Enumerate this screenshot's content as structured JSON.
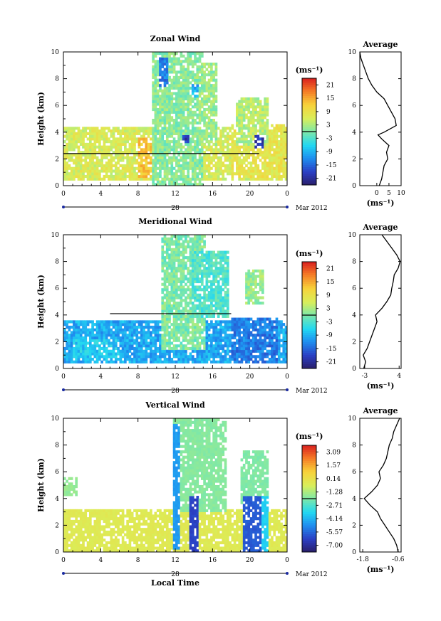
{
  "chart_data": [
    {
      "type": "heatmap",
      "title": "Zonal Wind",
      "xlabel": "",
      "ylabel": "Height (km)",
      "xlim": [
        0,
        24
      ],
      "ylim": [
        0,
        10
      ],
      "x_ticks": [
        "0",
        "4",
        "8",
        "12",
        "16",
        "20",
        "0"
      ],
      "y_ticks": [
        "0",
        "2",
        "4",
        "6",
        "8",
        "10"
      ],
      "date_day": "28",
      "date_month": "Mar 2012",
      "colorbar": {
        "unit": "(ms⁻¹)",
        "labels": [
          "21",
          "15",
          "9",
          "3",
          "-3",
          "-9",
          "-15",
          "-21"
        ],
        "range": [
          -24,
          24
        ]
      },
      "field_scale": 18,
      "regions": [
        {
          "x": [
            0,
            24
          ],
          "y": [
            0.5,
            4.3
          ],
          "v": 0.35
        },
        {
          "x": [
            8,
            14
          ],
          "y": [
            0.7,
            3.6
          ],
          "v": 0.7
        },
        {
          "x": [
            9.5,
            15
          ],
          "y": [
            0,
            10
          ],
          "v": 0.05
        },
        {
          "x": [
            14.5,
            16.5
          ],
          "y": [
            3,
            9.2
          ],
          "v": 0.1
        },
        {
          "x": [
            18,
            24
          ],
          "y": [
            0.6,
            4.5
          ],
          "v": 0.45
        },
        {
          "x": [
            18.5,
            22
          ],
          "y": [
            3,
            6.5
          ],
          "v": 0.2
        }
      ],
      "dark_blobs": [
        {
          "x": [
            10.3,
            11.3
          ],
          "y": [
            7.4,
            9.6
          ],
          "v": -0.75
        },
        {
          "x": [
            12.8,
            13.6
          ],
          "y": [
            3.2,
            3.8
          ],
          "v": -1.05
        },
        {
          "x": [
            20.6,
            21.5
          ],
          "y": [
            2.9,
            3.9
          ],
          "v": -1.05
        },
        {
          "x": [
            13.8,
            14.6
          ],
          "y": [
            6.6,
            7.6
          ],
          "v": -0.5
        }
      ],
      "reference_line": {
        "x": [
          0,
          21
        ],
        "y": 2.4
      },
      "profile": {
        "title": "Average",
        "xlabel": "(ms⁻¹)",
        "xlim": [
          -7,
          10
        ],
        "x_ticks": [
          "0",
          "5",
          "10"
        ],
        "x_tick_values": [
          0,
          5,
          10
        ],
        "height": [
          0.0,
          0.5,
          1.0,
          1.5,
          2.0,
          2.5,
          3.0,
          3.5,
          3.8,
          4.0,
          4.5,
          5.0,
          5.5,
          6.0,
          6.5,
          7.0,
          7.5,
          8.0,
          8.5,
          9.0,
          9.5,
          10.0
        ],
        "value": [
          1.0,
          2.0,
          2.5,
          3.0,
          4.5,
          4.0,
          5.0,
          2.0,
          0.5,
          3.0,
          8.0,
          7.5,
          6.0,
          4.5,
          3.0,
          0.0,
          -2.0,
          -3.5,
          -4.5,
          -5.5,
          -6.5,
          -7.0
        ]
      }
    },
    {
      "type": "heatmap",
      "title": "Meridional Wind",
      "xlabel": "",
      "ylabel": "Height (km)",
      "xlim": [
        0,
        24
      ],
      "ylim": [
        0,
        10
      ],
      "x_ticks": [
        "0",
        "4",
        "8",
        "12",
        "16",
        "20",
        "0"
      ],
      "y_ticks": [
        "0",
        "2",
        "4",
        "6",
        "8",
        "10"
      ],
      "date_day": "28",
      "date_month": "Mar 2012",
      "colorbar": {
        "unit": "(ms⁻¹)",
        "labels": [
          "21",
          "15",
          "9",
          "3",
          "-3",
          "-9",
          "-15",
          "-21"
        ],
        "range": [
          -24,
          24
        ]
      },
      "field_scale": 18,
      "regions": [
        {
          "x": [
            0,
            24
          ],
          "y": [
            0.4,
            3.5
          ],
          "v": -0.55
        },
        {
          "x": [
            10.5,
            15.2
          ],
          "y": [
            1.5,
            10
          ],
          "v": 0.0
        },
        {
          "x": [
            13.8,
            17.8
          ],
          "y": [
            3.8,
            8.8
          ],
          "v": -0.15
        },
        {
          "x": [
            19.5,
            21.5
          ],
          "y": [
            4.8,
            7.3
          ],
          "v": 0.1
        },
        {
          "x": [
            18,
            23
          ],
          "y": [
            0.4,
            3.8
          ],
          "v": -0.75
        },
        {
          "x": [
            1,
            6
          ],
          "y": [
            0.6,
            2.2
          ],
          "v": -0.4
        }
      ],
      "dark_blobs": [],
      "reference_line": {
        "x": [
          5,
          18
        ],
        "y": 4.1
      },
      "profile": {
        "title": "Average",
        "xlabel": "(ms⁻¹)",
        "xlim": [
          -4,
          4.4
        ],
        "x_ticks": [
          "-3",
          "4"
        ],
        "x_tick_values": [
          -3,
          4
        ],
        "height": [
          0.0,
          0.5,
          1.0,
          1.5,
          2.0,
          2.5,
          3.0,
          3.5,
          4.0,
          4.5,
          5.0,
          5.5,
          6.0,
          6.5,
          7.0,
          7.5,
          8.0,
          8.5,
          9.0,
          9.5,
          10.0
        ],
        "value": [
          -3.2,
          -2.8,
          -3.3,
          -2.5,
          -2.0,
          -1.5,
          -1.0,
          -0.5,
          -0.8,
          0.5,
          1.5,
          2.3,
          2.5,
          2.8,
          3.0,
          3.8,
          4.2,
          3.5,
          2.5,
          1.5,
          0.5
        ]
      }
    },
    {
      "type": "heatmap",
      "title": "Vertical Wind",
      "xlabel": "Local Time",
      "ylabel": "Height (km)",
      "xlim": [
        0,
        24
      ],
      "ylim": [
        0,
        10
      ],
      "x_ticks": [
        "0",
        "4",
        "8",
        "12",
        "16",
        "20",
        "0"
      ],
      "y_ticks": [
        "0",
        "2",
        "4",
        "6",
        "8",
        "10"
      ],
      "date_day": "28",
      "date_month": "Mar 2012",
      "colorbar": {
        "unit": "(ms⁻¹)",
        "labels": [
          "3.09",
          "1.57",
          "0.14",
          "-1.28",
          "-2.71",
          "-4.14",
          "-5.57",
          "-7.00"
        ],
        "range": [
          -7.7,
          3.8
        ]
      },
      "field_scale": 1,
      "regions": [
        {
          "x": [
            0,
            24
          ],
          "y": [
            0,
            3.2
          ],
          "v": -0.3
        },
        {
          "x": [
            11.8,
            17.5
          ],
          "y": [
            3,
            10
          ],
          "v": -1.8
        },
        {
          "x": [
            19,
            22
          ],
          "y": [
            3.5,
            7.5
          ],
          "v": -1.9
        },
        {
          "x": [
            0,
            1.5
          ],
          "y": [
            4.3,
            5.5
          ],
          "v": -1.6
        }
      ],
      "dark_blobs": [
        {
          "x": [
            11.8,
            12.6
          ],
          "y": [
            0.3,
            9.5
          ],
          "v": -4.6
        },
        {
          "x": [
            13.4,
            14.4
          ],
          "y": [
            0,
            4.2
          ],
          "v": -6.3
        },
        {
          "x": [
            19.3,
            21.2
          ],
          "y": [
            0,
            4.2
          ],
          "v": -5.8
        },
        {
          "x": [
            21.2,
            22
          ],
          "y": [
            0,
            4.2
          ],
          "v": -3.6
        }
      ],
      "reference_line": null,
      "profile": {
        "title": "Average",
        "xlabel": "(ms⁻¹)",
        "xlim": [
          -1.9,
          -0.5
        ],
        "x_ticks": [
          "-1.8",
          "-0.6"
        ],
        "x_tick_values": [
          -1.8,
          -0.6
        ],
        "height": [
          0.0,
          0.5,
          1.0,
          1.5,
          2.0,
          2.5,
          3.0,
          3.5,
          4.0,
          4.5,
          5.0,
          5.5,
          6.0,
          6.5,
          7.0,
          7.5,
          8.0,
          8.5,
          9.0,
          9.5,
          10.0
        ],
        "value": [
          -0.6,
          -0.65,
          -0.75,
          -0.9,
          -1.05,
          -1.2,
          -1.3,
          -1.55,
          -1.75,
          -1.5,
          -1.3,
          -1.2,
          -1.25,
          -1.1,
          -1.0,
          -0.95,
          -0.9,
          -0.8,
          -0.75,
          -0.65,
          -0.55
        ]
      }
    }
  ]
}
